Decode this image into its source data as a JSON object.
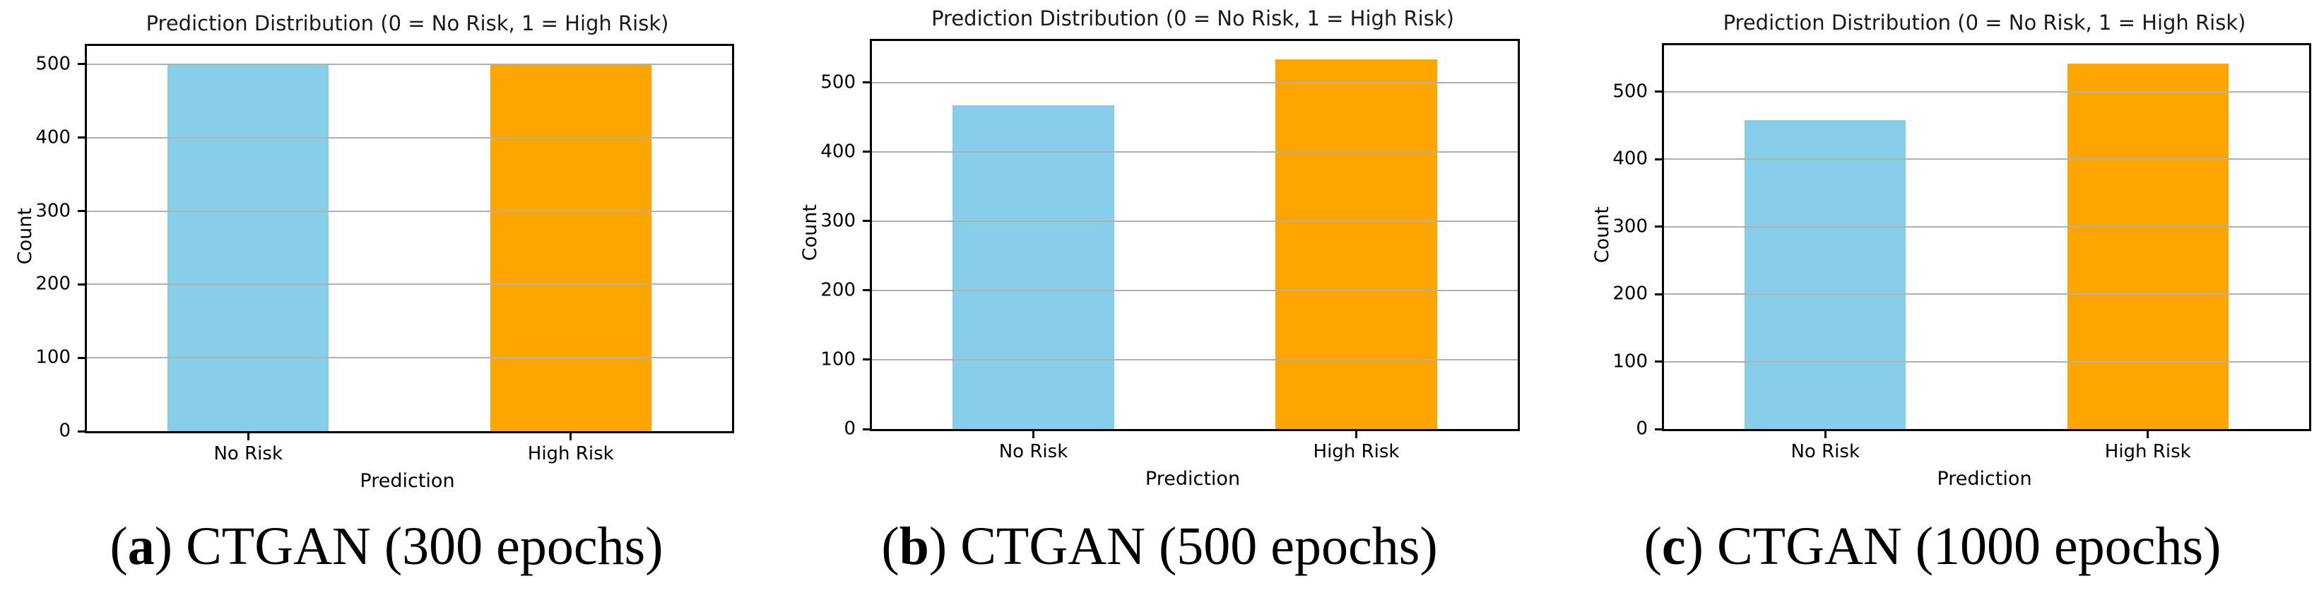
{
  "figure": {
    "description": "Three side-by-side matplotlib bar charts comparing prediction distributions of CTGAN models trained for different numbers of epochs",
    "panels": [
      {
        "caption": {
          "open": "(",
          "letter": "a",
          "rest": ") CTGAN (300 epochs)",
          "full": "(a) CTGAN (300 epochs)"
        }
      },
      {
        "caption": {
          "open": "(",
          "letter": "b",
          "rest": ") CTGAN (500 epochs)",
          "full": "(b) CTGAN (500 epochs)"
        }
      },
      {
        "caption": {
          "open": "(",
          "letter": "c",
          "rest": ") CTGAN (1000 epochs)",
          "full": "(c) CTGAN (1000 epochs)"
        }
      }
    ]
  },
  "chart_data": [
    {
      "type": "bar",
      "title": "Prediction Distribution (0 = No Risk, 1 = High Risk)",
      "xlabel": "Prediction",
      "ylabel": "Count",
      "categories": [
        "No Risk",
        "High Risk"
      ],
      "values": [
        500,
        500
      ],
      "bar_colors": [
        "#87CEEB",
        "#FFA500"
      ],
      "yticks": [
        0,
        100,
        200,
        300,
        400,
        500
      ],
      "ylim": [
        0,
        525
      ],
      "grid": {
        "axis": "y",
        "color": "#b0b0b0",
        "above_bars": true
      },
      "legend": null,
      "caption": "(a) CTGAN (300 epochs)"
    },
    {
      "type": "bar",
      "title": "Prediction Distribution (0 = No Risk, 1 = High Risk)",
      "xlabel": "Prediction",
      "ylabel": "Count",
      "categories": [
        "No Risk",
        "High Risk"
      ],
      "values": [
        467,
        533
      ],
      "bar_colors": [
        "#87CEEB",
        "#FFA500"
      ],
      "yticks": [
        0,
        100,
        200,
        300,
        400,
        500
      ],
      "ylim": [
        0,
        560
      ],
      "grid": {
        "axis": "y",
        "color": "#b0b0b0",
        "above_bars": true
      },
      "legend": null,
      "caption": "(b) CTGAN (500 epochs)"
    },
    {
      "type": "bar",
      "title": "Prediction Distribution (0 = No Risk, 1 = High Risk)",
      "xlabel": "Prediction",
      "ylabel": "Count",
      "categories": [
        "No Risk",
        "High Risk"
      ],
      "values": [
        458,
        542
      ],
      "bar_colors": [
        "#87CEEB",
        "#FFA500"
      ],
      "yticks": [
        0,
        100,
        200,
        300,
        400,
        500
      ],
      "ylim": [
        0,
        569
      ],
      "grid": {
        "axis": "y",
        "color": "#b0b0b0",
        "above_bars": true
      },
      "legend": null,
      "caption": "(c) CTGAN (1000 epochs)"
    }
  ]
}
